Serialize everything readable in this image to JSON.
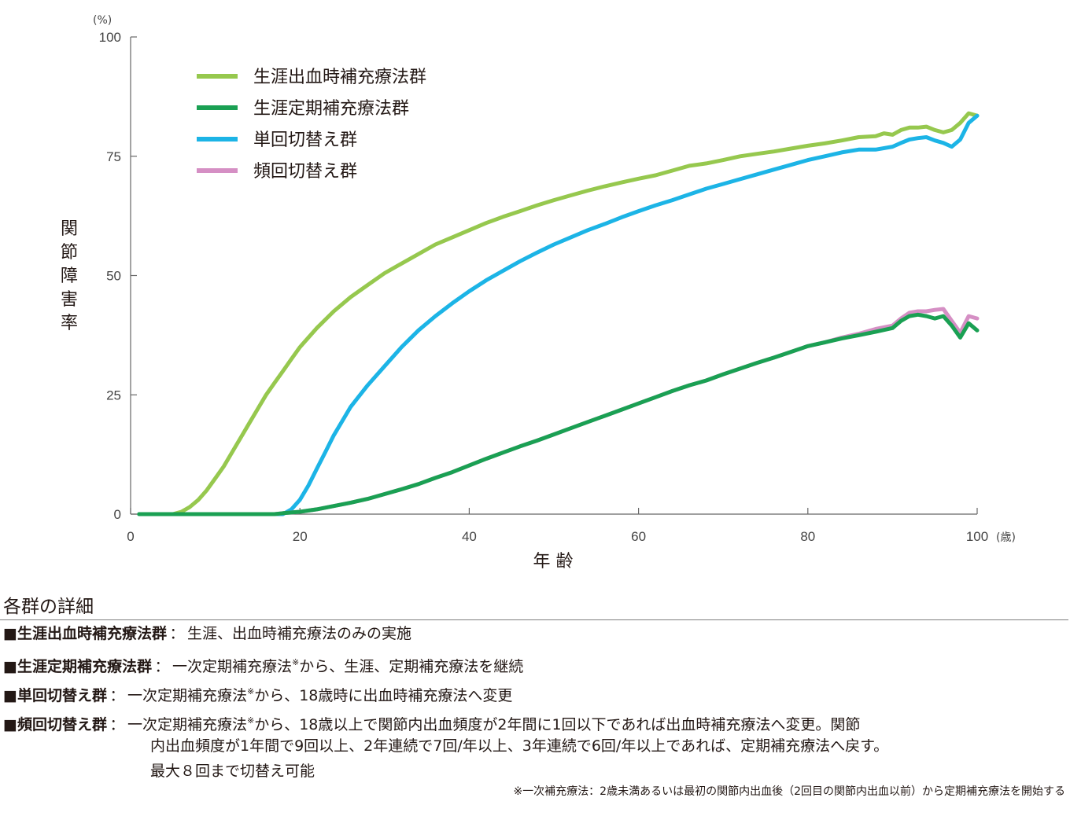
{
  "chart_data": {
    "type": "line",
    "title": "",
    "xlabel": "年 齢",
    "ylabel": "関節障害率",
    "y_unit": "(%)",
    "x_unit": "(歳)",
    "xlim": [
      0,
      100
    ],
    "ylim": [
      0,
      100
    ],
    "x_ticks": [
      "0",
      "20",
      "40",
      "60",
      "80",
      "100"
    ],
    "y_ticks": [
      "0",
      "25",
      "50",
      "75",
      "100"
    ],
    "grid": false,
    "legend_position": "top-left",
    "series": [
      {
        "name": "生涯出血時補充療法群",
        "color": "#96c84e",
        "points": [
          [
            1,
            0
          ],
          [
            5,
            0
          ],
          [
            6,
            0.5
          ],
          [
            7,
            1.5
          ],
          [
            8,
            3
          ],
          [
            9,
            5
          ],
          [
            10,
            7.5
          ],
          [
            11,
            10
          ],
          [
            12,
            13
          ],
          [
            13,
            16
          ],
          [
            14,
            19
          ],
          [
            15,
            22
          ],
          [
            16,
            25
          ],
          [
            17,
            27.5
          ],
          [
            18,
            30
          ],
          [
            19,
            32.5
          ],
          [
            20,
            35
          ],
          [
            22,
            39
          ],
          [
            24,
            42.5
          ],
          [
            26,
            45.5
          ],
          [
            28,
            48
          ],
          [
            30,
            50.5
          ],
          [
            32,
            52.5
          ],
          [
            34,
            54.5
          ],
          [
            36,
            56.5
          ],
          [
            38,
            58
          ],
          [
            40,
            59.5
          ],
          [
            42,
            61
          ],
          [
            44,
            62.3
          ],
          [
            46,
            63.5
          ],
          [
            48,
            64.7
          ],
          [
            50,
            65.8
          ],
          [
            52,
            66.8
          ],
          [
            54,
            67.8
          ],
          [
            56,
            68.7
          ],
          [
            58,
            69.5
          ],
          [
            60,
            70.3
          ],
          [
            62,
            71
          ],
          [
            64,
            72
          ],
          [
            66,
            73
          ],
          [
            68,
            73.5
          ],
          [
            70,
            74.2
          ],
          [
            72,
            75
          ],
          [
            74,
            75.5
          ],
          [
            76,
            76
          ],
          [
            78,
            76.6
          ],
          [
            80,
            77.2
          ],
          [
            82,
            77.7
          ],
          [
            84,
            78.3
          ],
          [
            86,
            79
          ],
          [
            88,
            79.2
          ],
          [
            89,
            79.8
          ],
          [
            90,
            79.5
          ],
          [
            91,
            80.5
          ],
          [
            92,
            81
          ],
          [
            93,
            81
          ],
          [
            94,
            81.2
          ],
          [
            95,
            80.5
          ],
          [
            96,
            80
          ],
          [
            97,
            80.5
          ],
          [
            98,
            82
          ],
          [
            99,
            84
          ],
          [
            100,
            83.5
          ]
        ]
      },
      {
        "name": "生涯定期補充療法群",
        "color": "#1aa053",
        "points": [
          [
            1,
            0
          ],
          [
            10,
            0
          ],
          [
            17,
            0
          ],
          [
            18,
            0.2
          ],
          [
            20,
            0.5
          ],
          [
            22,
            1
          ],
          [
            24,
            1.7
          ],
          [
            26,
            2.4
          ],
          [
            28,
            3.2
          ],
          [
            30,
            4.2
          ],
          [
            32,
            5.2
          ],
          [
            34,
            6.3
          ],
          [
            36,
            7.6
          ],
          [
            38,
            8.8
          ],
          [
            40,
            10.2
          ],
          [
            42,
            11.6
          ],
          [
            44,
            12.9
          ],
          [
            46,
            14.2
          ],
          [
            48,
            15.4
          ],
          [
            50,
            16.7
          ],
          [
            52,
            18
          ],
          [
            54,
            19.3
          ],
          [
            56,
            20.6
          ],
          [
            58,
            21.9
          ],
          [
            60,
            23.2
          ],
          [
            62,
            24.5
          ],
          [
            64,
            25.8
          ],
          [
            66,
            27
          ],
          [
            68,
            28
          ],
          [
            70,
            29.3
          ],
          [
            72,
            30.5
          ],
          [
            74,
            31.7
          ],
          [
            76,
            32.8
          ],
          [
            78,
            34
          ],
          [
            80,
            35.2
          ],
          [
            82,
            36
          ],
          [
            84,
            36.8
          ],
          [
            86,
            37.5
          ],
          [
            88,
            38.2
          ],
          [
            90,
            39
          ],
          [
            91,
            40.5
          ],
          [
            92,
            41.5
          ],
          [
            93,
            41.8
          ],
          [
            94,
            41.5
          ],
          [
            95,
            41
          ],
          [
            96,
            41.5
          ],
          [
            97,
            39.5
          ],
          [
            98,
            37
          ],
          [
            99,
            40
          ],
          [
            100,
            38.5
          ]
        ]
      },
      {
        "name": "単回切替え群",
        "color": "#1cb4e6",
        "points": [
          [
            1,
            0
          ],
          [
            10,
            0
          ],
          [
            18,
            0
          ],
          [
            19,
            1
          ],
          [
            20,
            3
          ],
          [
            21,
            6
          ],
          [
            22,
            9.5
          ],
          [
            23,
            13
          ],
          [
            24,
            16.5
          ],
          [
            25,
            19.5
          ],
          [
            26,
            22.5
          ],
          [
            28,
            27
          ],
          [
            30,
            31
          ],
          [
            32,
            35
          ],
          [
            34,
            38.5
          ],
          [
            36,
            41.5
          ],
          [
            38,
            44.2
          ],
          [
            40,
            46.7
          ],
          [
            42,
            49
          ],
          [
            44,
            51
          ],
          [
            46,
            53
          ],
          [
            48,
            54.8
          ],
          [
            50,
            56.5
          ],
          [
            52,
            58
          ],
          [
            54,
            59.5
          ],
          [
            56,
            60.8
          ],
          [
            58,
            62.2
          ],
          [
            60,
            63.5
          ],
          [
            62,
            64.7
          ],
          [
            64,
            65.8
          ],
          [
            66,
            67
          ],
          [
            68,
            68.2
          ],
          [
            70,
            69.2
          ],
          [
            72,
            70.2
          ],
          [
            74,
            71.2
          ],
          [
            76,
            72.2
          ],
          [
            78,
            73.2
          ],
          [
            80,
            74.2
          ],
          [
            82,
            75
          ],
          [
            84,
            75.8
          ],
          [
            86,
            76.4
          ],
          [
            88,
            76.4
          ],
          [
            90,
            77
          ],
          [
            91,
            77.8
          ],
          [
            92,
            78.5
          ],
          [
            93,
            78.8
          ],
          [
            94,
            79
          ],
          [
            95,
            78.3
          ],
          [
            96,
            77.8
          ],
          [
            97,
            77
          ],
          [
            98,
            78.5
          ],
          [
            99,
            82
          ],
          [
            100,
            83.5
          ]
        ]
      },
      {
        "name": "頻回切替え群",
        "color": "#d58fc4",
        "points": [
          [
            1,
            0
          ],
          [
            10,
            0
          ],
          [
            17,
            0
          ],
          [
            18,
            0.2
          ],
          [
            20,
            0.5
          ],
          [
            22,
            1
          ],
          [
            24,
            1.7
          ],
          [
            26,
            2.4
          ],
          [
            28,
            3.2
          ],
          [
            30,
            4.2
          ],
          [
            32,
            5.2
          ],
          [
            34,
            6.3
          ],
          [
            36,
            7.6
          ],
          [
            38,
            8.8
          ],
          [
            40,
            10.2
          ],
          [
            42,
            11.6
          ],
          [
            44,
            12.9
          ],
          [
            46,
            14.2
          ],
          [
            48,
            15.4
          ],
          [
            50,
            16.7
          ],
          [
            52,
            18
          ],
          [
            54,
            19.3
          ],
          [
            56,
            20.6
          ],
          [
            58,
            21.9
          ],
          [
            60,
            23.2
          ],
          [
            62,
            24.5
          ],
          [
            64,
            25.8
          ],
          [
            66,
            27
          ],
          [
            68,
            28
          ],
          [
            70,
            29.3
          ],
          [
            72,
            30.5
          ],
          [
            74,
            31.7
          ],
          [
            76,
            32.8
          ],
          [
            78,
            34
          ],
          [
            80,
            35.2
          ],
          [
            82,
            36
          ],
          [
            84,
            37
          ],
          [
            86,
            37.8
          ],
          [
            88,
            38.8
          ],
          [
            90,
            39.5
          ],
          [
            91,
            41
          ],
          [
            92,
            42.2
          ],
          [
            93,
            42.5
          ],
          [
            94,
            42.5
          ],
          [
            95,
            42.8
          ],
          [
            96,
            43
          ],
          [
            97,
            40.5
          ],
          [
            98,
            38
          ],
          [
            99,
            41.5
          ],
          [
            100,
            41
          ]
        ]
      }
    ]
  },
  "details": {
    "title": "各群の詳細",
    "rows": [
      {
        "term": "■生涯出血時補充療法群",
        "sep": "：",
        "text": "生涯、出血時補充療法のみの実施"
      },
      {
        "term": "■生涯定期補充療法群",
        "sep": "：",
        "text_before": "一次定期補充療法",
        "mark": "※",
        "text_after": "から、生涯、定期補充療法を継続"
      },
      {
        "term": "■単回切替え群",
        "sep": "：",
        "text_before": "一次定期補充療法",
        "mark": "※",
        "text_after": "から、18歳時に出血時補充療法へ変更"
      },
      {
        "term": "■頻回切替え群",
        "sep": "：",
        "text_before": "一次定期補充療法",
        "mark": "※",
        "text_after": "から、18歳以上で関節内出血頻度が2年間に1回以下であれば出血時補充療法へ変更。関節"
      }
    ],
    "continuation": [
      "内出血頻度が1年間で9回以上、2年連続で7回/年以上、3年連続で6回/年以上であれば、定期補充療法へ戻す。",
      "最大８回まで切替え可能"
    ],
    "footnote": "※一次補充療法：2歳未満あるいは最初の関節内出血後（2回目の関節内出血以前）から定期補充療法を開始する"
  }
}
